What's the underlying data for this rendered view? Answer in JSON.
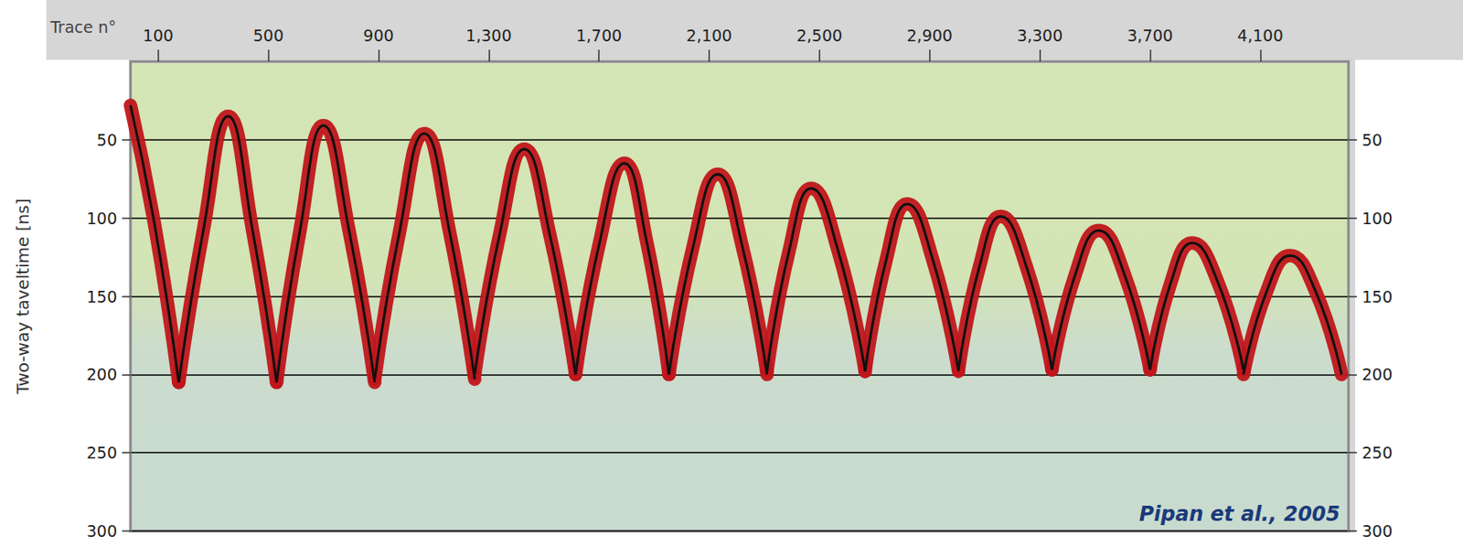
{
  "chart_data": {
    "type": "line",
    "x_label": "Trace n°",
    "y_label": "Two-way taveltime [ns]",
    "annotation": "Pipan et al., 2005",
    "xlim": [
      0,
      4420
    ],
    "xticks": [
      100,
      500,
      900,
      1300,
      1700,
      2100,
      2500,
      2900,
      3300,
      3700,
      4100
    ],
    "ylim": [
      0,
      300
    ],
    "yticks": [
      50,
      100,
      150,
      200,
      250,
      300
    ],
    "y2lim": [
      0,
      300
    ],
    "y2ticks": [
      50,
      100,
      150,
      200,
      250,
      300
    ],
    "grid": true,
    "tick_labels": true,
    "color": "#c0161b",
    "series": [
      {
        "x": [
          0,
          88,
          175
        ],
        "values": [
          28,
          105,
          205
        ]
      },
      {
        "x": [
          175,
          265,
          354,
          442,
          530
        ],
        "values": [
          205,
          107,
          35,
          107,
          205
        ]
      },
      {
        "x": [
          530,
          615,
          700,
          793,
          886
        ],
        "values": [
          205,
          108,
          41,
          108,
          205
        ]
      },
      {
        "x": [
          886,
          976,
          1066,
          1158,
          1249
        ],
        "values": [
          203,
          109,
          46,
          109,
          203
        ]
      },
      {
        "x": [
          1249,
          1339,
          1429,
          1522,
          1615
        ],
        "values": [
          200,
          111,
          56,
          111,
          200
        ]
      },
      {
        "x": [
          1615,
          1703,
          1792,
          1873,
          1954
        ],
        "values": [
          200,
          115,
          65,
          115,
          200
        ]
      },
      {
        "x": [
          1954,
          2042,
          2131,
          2220,
          2310
        ],
        "values": [
          200,
          118,
          72,
          118,
          200
        ]
      },
      {
        "x": [
          2310,
          2390,
          2470,
          2568,
          2666
        ],
        "values": [
          198,
          121,
          81,
          121,
          198
        ]
      },
      {
        "x": [
          2666,
          2742,
          2819,
          2912,
          3005
        ],
        "values": [
          198,
          127,
          91,
          127,
          198
        ]
      },
      {
        "x": [
          3005,
          3081,
          3158,
          3251,
          3344
        ],
        "values": [
          197,
          131,
          99,
          131,
          197
        ]
      },
      {
        "x": [
          3344,
          3429,
          3514,
          3607,
          3700
        ],
        "values": [
          197,
          136,
          108,
          136,
          197
        ]
      },
      {
        "x": [
          3700,
          3776,
          3853,
          3946,
          4039
        ],
        "values": [
          197,
          141,
          116,
          141,
          197
        ]
      },
      {
        "x": [
          4039,
          4123,
          4208,
          4301,
          4395
        ],
        "values": [
          200,
          147,
          124,
          147,
          200
        ]
      }
    ]
  }
}
